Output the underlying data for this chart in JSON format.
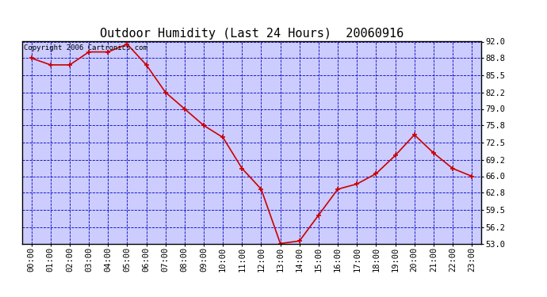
{
  "title": "Outdoor Humidity (Last 24 Hours)  20060916",
  "copyright_text": "Copyright 2006 Cartronics.com",
  "x_labels": [
    "00:00",
    "01:00",
    "02:00",
    "03:00",
    "04:00",
    "05:00",
    "06:00",
    "07:00",
    "08:00",
    "09:00",
    "10:00",
    "11:00",
    "12:00",
    "13:00",
    "14:00",
    "15:00",
    "16:00",
    "17:00",
    "18:00",
    "19:00",
    "20:00",
    "21:00",
    "22:00",
    "23:00"
  ],
  "y_values": [
    88.8,
    87.5,
    87.5,
    90.0,
    90.0,
    91.5,
    87.5,
    82.2,
    79.0,
    75.8,
    73.5,
    67.5,
    63.5,
    53.0,
    53.5,
    58.5,
    63.5,
    64.5,
    66.5,
    70.0,
    74.0,
    70.5,
    67.5,
    66.0
  ],
  "ylim_min": 53.0,
  "ylim_max": 92.0,
  "yticks": [
    53.0,
    56.2,
    59.5,
    62.8,
    66.0,
    69.2,
    72.5,
    75.8,
    79.0,
    82.2,
    85.5,
    88.8,
    92.0
  ],
  "line_color": "#cc0000",
  "marker_color": "#cc0000",
  "fig_bg_color": "#ffffff",
  "plot_bg_color": "#ccccff",
  "grid_color": "#0000bb",
  "title_color": "#000000",
  "title_fontsize": 11,
  "tick_label_color": "#000000",
  "tick_fontsize": 7.5,
  "copyright_color": "#000000",
  "copyright_fontsize": 6.5,
  "border_color": "#000000"
}
